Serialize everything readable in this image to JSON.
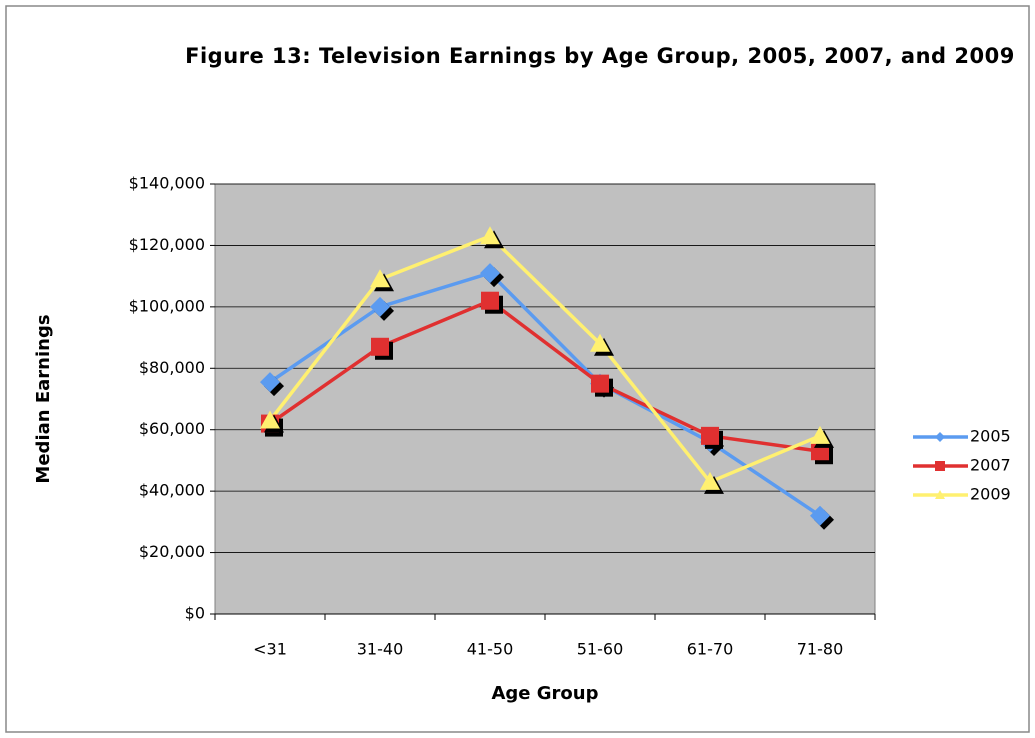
{
  "chart_data": {
    "type": "line",
    "title": "Figure 13:  Television Earnings by Age Group, 2005, 2007, and 2009",
    "xlabel": "Age Group",
    "ylabel": "Median Earnings",
    "categories": [
      "<31",
      "31-40",
      "41-50",
      "51-60",
      "61-70",
      "71-80"
    ],
    "series": [
      {
        "name": "2005",
        "color": "#5b9bf0",
        "marker": "diamond",
        "values": [
          75500,
          100000,
          111000,
          75000,
          56000,
          32000
        ]
      },
      {
        "name": "2007",
        "color": "#e03030",
        "marker": "square",
        "values": [
          62000,
          87000,
          102000,
          75000,
          58000,
          53000
        ]
      },
      {
        "name": "2009",
        "color": "#fff070",
        "marker": "triangle",
        "values": [
          63000,
          109000,
          123000,
          88000,
          43000,
          58000
        ]
      }
    ],
    "ylim": [
      0,
      140000
    ],
    "yticks": [
      {
        "value": 0,
        "label": "$0"
      },
      {
        "value": 20000,
        "label": "$20,000"
      },
      {
        "value": 40000,
        "label": "$40,000"
      },
      {
        "value": 60000,
        "label": "$60,000"
      },
      {
        "value": 80000,
        "label": "$80,000"
      },
      {
        "value": 100000,
        "label": "$100,000"
      },
      {
        "value": 120000,
        "label": "$120,000"
      },
      {
        "value": 140000,
        "label": "$140,000"
      }
    ],
    "grid": true,
    "legend": "right"
  }
}
